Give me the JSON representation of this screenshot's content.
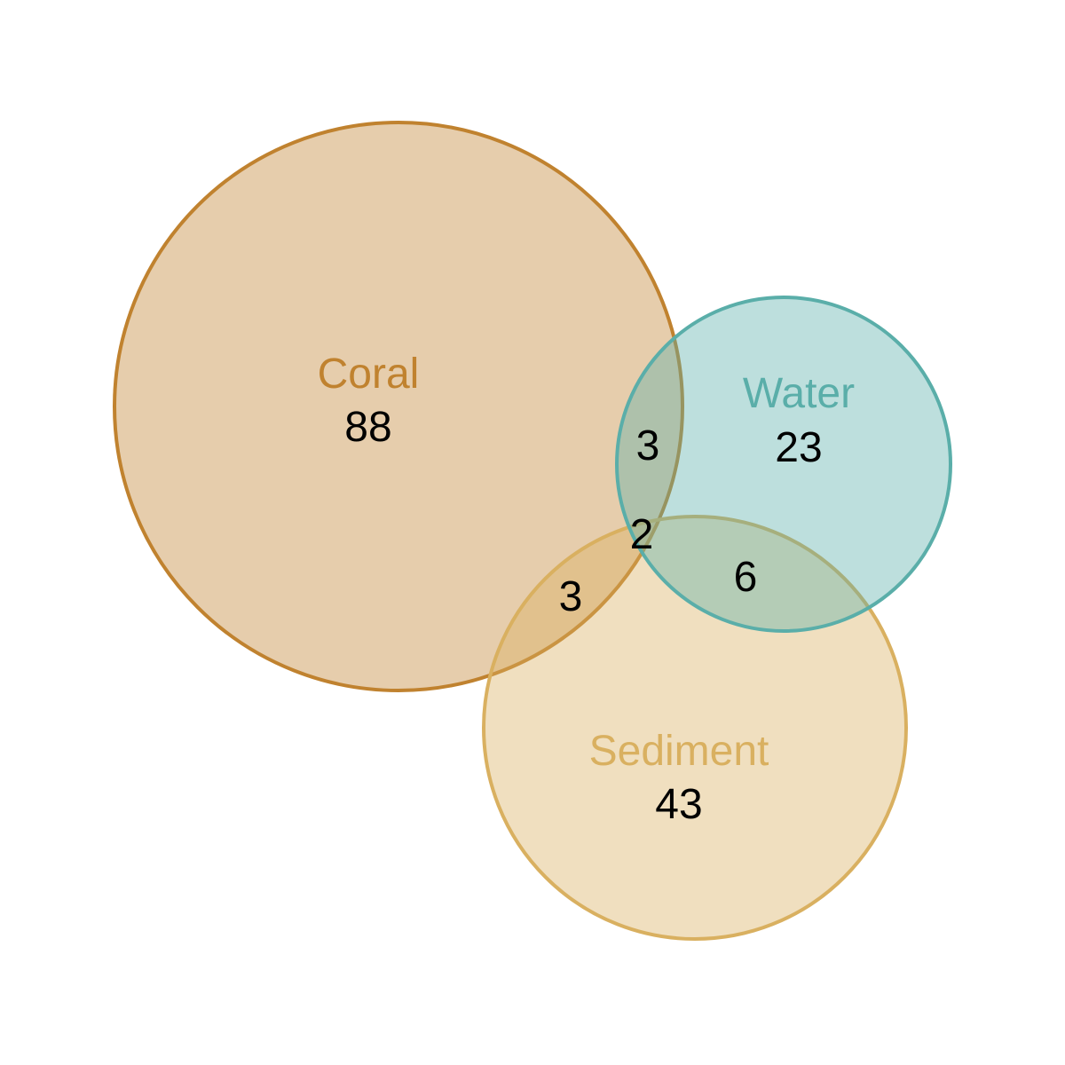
{
  "sets": [
    {
      "key": "coral",
      "label": "Coral",
      "only_count": "88",
      "stroke": "#C0822F",
      "fill": "#C0822F",
      "label_color": "#C0822F"
    },
    {
      "key": "water",
      "label": "Water",
      "only_count": "23",
      "stroke": "#5AAEA9",
      "fill": "#5AAEA9",
      "label_color": "#5AAEA9"
    },
    {
      "key": "sediment",
      "label": "Sediment",
      "only_count": "43",
      "stroke": "#D9B060",
      "fill": "#D9B060",
      "label_color": "#D9B060"
    }
  ],
  "intersections": {
    "coral_water": "3",
    "coral_sediment": "3",
    "water_sediment": "6",
    "coral_water_sediment": "2"
  }
}
